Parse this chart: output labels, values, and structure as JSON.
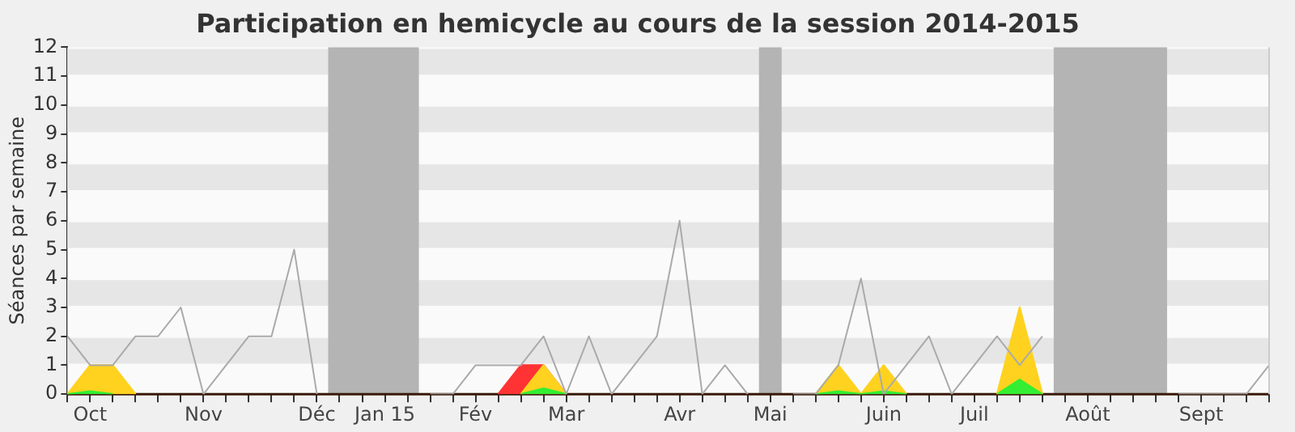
{
  "chart_data": {
    "type": "area",
    "title": "Participation en hemicycle au cours de la session 2014-2015",
    "ylabel": "Séances par semaine",
    "categories": [
      null,
      "Oct",
      null,
      null,
      null,
      null,
      "Nov",
      null,
      null,
      null,
      null,
      "Déc",
      null,
      null,
      "Jan 15",
      null,
      null,
      null,
      "Fév",
      null,
      null,
      null,
      "Mar",
      null,
      null,
      null,
      null,
      "Avr",
      null,
      null,
      null,
      "Mai",
      null,
      null,
      null,
      null,
      "Juin",
      null,
      null,
      null,
      "Juil",
      null,
      null,
      null,
      null,
      "Août",
      null,
      null,
      null,
      null,
      "Sept",
      null,
      null,
      null
    ],
    "ylim": [
      0,
      12
    ],
    "yticks": [
      0,
      1,
      2,
      3,
      4,
      5,
      6,
      7,
      8,
      9,
      10,
      11,
      12
    ],
    "legend": false,
    "marker": "none",
    "series": [
      {
        "type": "line",
        "color": "#aaaaaa",
        "values": [
          2,
          1,
          1,
          2,
          2,
          3,
          0,
          1,
          2,
          2,
          5,
          0,
          null,
          null,
          null,
          null,
          0,
          0,
          1,
          1,
          1,
          2,
          0,
          2,
          0,
          1,
          2,
          6,
          0,
          1,
          0,
          null,
          0,
          0,
          1,
          4,
          0,
          1,
          2,
          0,
          1,
          2,
          1,
          2,
          null,
          null,
          null,
          null,
          null,
          0,
          0,
          0,
          0,
          1
        ]
      },
      {
        "color": "#ff3333",
        "values": [
          null,
          null,
          null,
          null,
          null,
          null,
          null,
          null,
          null,
          null,
          null,
          null,
          null,
          null,
          null,
          null,
          null,
          null,
          null,
          0,
          1,
          1,
          0,
          null,
          null,
          null,
          null,
          null,
          null,
          null,
          null,
          null,
          null,
          null,
          null,
          null,
          null,
          null,
          null,
          null,
          null,
          null,
          null,
          null,
          null,
          null,
          null,
          null,
          null,
          null,
          null,
          null,
          null,
          null
        ]
      },
      {
        "color": "#ffd21f",
        "values": [
          0,
          1,
          1,
          0,
          null,
          null,
          null,
          null,
          null,
          null,
          null,
          null,
          null,
          null,
          null,
          null,
          null,
          null,
          null,
          null,
          0,
          1,
          0,
          null,
          null,
          null,
          null,
          null,
          null,
          null,
          null,
          null,
          null,
          0,
          1,
          0,
          1,
          0,
          null,
          null,
          null,
          0,
          3,
          0,
          null,
          null,
          null,
          null,
          null,
          null,
          null,
          null,
          null,
          null
        ]
      },
      {
        "color": "#33ee33",
        "values": [
          0,
          0.1,
          0,
          null,
          null,
          null,
          null,
          null,
          null,
          null,
          null,
          null,
          null,
          null,
          null,
          null,
          null,
          null,
          null,
          null,
          0,
          0.2,
          0,
          null,
          null,
          null,
          null,
          null,
          null,
          null,
          null,
          null,
          null,
          0,
          0.1,
          0,
          0.1,
          0,
          null,
          null,
          null,
          0,
          0.5,
          0,
          null,
          null,
          null,
          null,
          null,
          null,
          null,
          null,
          null,
          null
        ]
      }
    ]
  }
}
